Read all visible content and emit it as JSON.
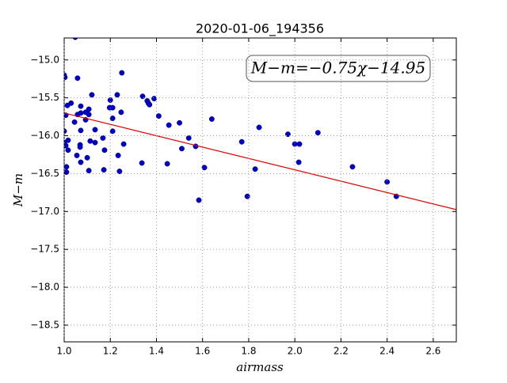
{
  "chart_data": {
    "type": "scatter",
    "title": "2020-01-06_194356",
    "xlabel": "airmass",
    "ylabel": "M−m",
    "annotation": "M−m=−0.75χ−14.95",
    "xlim": [
      1.0,
      2.7
    ],
    "ylim": [
      -18.72,
      -14.71
    ],
    "xticks": [
      {
        "value": 1.0,
        "label": "1.0"
      },
      {
        "value": 1.2,
        "label": "1.2"
      },
      {
        "value": 1.4,
        "label": "1.4"
      },
      {
        "value": 1.6,
        "label": "1.6"
      },
      {
        "value": 1.8,
        "label": "1.8"
      },
      {
        "value": 2.0,
        "label": "2.0"
      },
      {
        "value": 2.2,
        "label": "2.2"
      },
      {
        "value": 2.4,
        "label": "2.4"
      },
      {
        "value": 2.6,
        "label": "2.6"
      }
    ],
    "yticks": [
      {
        "value": -15.0,
        "label": "−15.0"
      },
      {
        "value": -15.5,
        "label": "−15.5"
      },
      {
        "value": -16.0,
        "label": "−16.0"
      },
      {
        "value": -16.5,
        "label": "−16.5"
      },
      {
        "value": -17.0,
        "label": "−17.0"
      },
      {
        "value": -17.5,
        "label": "−17.5"
      },
      {
        "value": -18.0,
        "label": "−18.0"
      },
      {
        "value": -18.5,
        "label": "−18.5"
      }
    ],
    "grid": true,
    "series": [
      {
        "color": "#0000cc",
        "x": [
          1.048,
          1.0,
          1.003,
          1.058,
          1.25,
          1.12,
          1.23,
          1.014,
          1.03,
          1.34,
          1.36,
          1.365,
          1.37,
          1.39,
          1.2,
          1.197,
          1.21,
          1.107,
          1.072,
          1.007,
          1.058,
          1.072,
          1.093,
          1.107,
          1.045,
          1.093,
          1.21,
          1.247,
          1.41,
          1.0,
          1.072,
          1.134,
          1.21,
          1.454,
          1.5,
          1.64,
          1.845,
          1.97,
          2.1,
          2.0,
          2.02,
          1.77,
          1.0,
          1.007,
          1.017,
          1.017,
          1.069,
          1.069,
          1.113,
          1.134,
          1.168,
          1.258,
          1.54,
          1.57,
          1.51,
          1.175,
          1.055,
          1.1,
          1.072,
          1.234,
          1.337,
          1.447,
          2.017,
          1.01,
          1.01,
          1.107,
          1.172,
          1.24,
          1.608,
          1.828,
          2.25,
          2.4,
          2.44,
          1.794,
          1.584
        ],
        "values": [
          -14.7,
          -15.2,
          -15.23,
          -15.24,
          -15.17,
          -15.46,
          -15.46,
          -15.6,
          -15.57,
          -15.48,
          -15.54,
          -15.57,
          -15.59,
          -15.51,
          -15.53,
          -15.63,
          -15.63,
          -15.65,
          -15.61,
          -15.73,
          -15.72,
          -15.7,
          -15.69,
          -15.72,
          -15.82,
          -15.79,
          -15.77,
          -15.69,
          -15.74,
          -15.94,
          -15.93,
          -15.92,
          -15.94,
          -15.86,
          -15.83,
          -15.78,
          -15.89,
          -15.98,
          -15.96,
          -16.11,
          -16.11,
          -16.08,
          -16.09,
          -16.13,
          -16.06,
          -16.19,
          -16.12,
          -16.15,
          -16.07,
          -16.09,
          -16.03,
          -16.11,
          -16.03,
          -16.14,
          -16.17,
          -16.19,
          -16.26,
          -16.29,
          -16.35,
          -16.26,
          -16.36,
          -16.37,
          -16.35,
          -16.41,
          -16.48,
          -16.46,
          -16.45,
          -16.47,
          -16.42,
          -16.44,
          -16.41,
          -16.61,
          -16.8,
          -16.8,
          -16.85
        ]
      },
      {
        "color": "#dd0000",
        "x": [
          1.0,
          2.7
        ],
        "values": [
          -15.7,
          -16.975
        ],
        "line": true
      }
    ]
  }
}
